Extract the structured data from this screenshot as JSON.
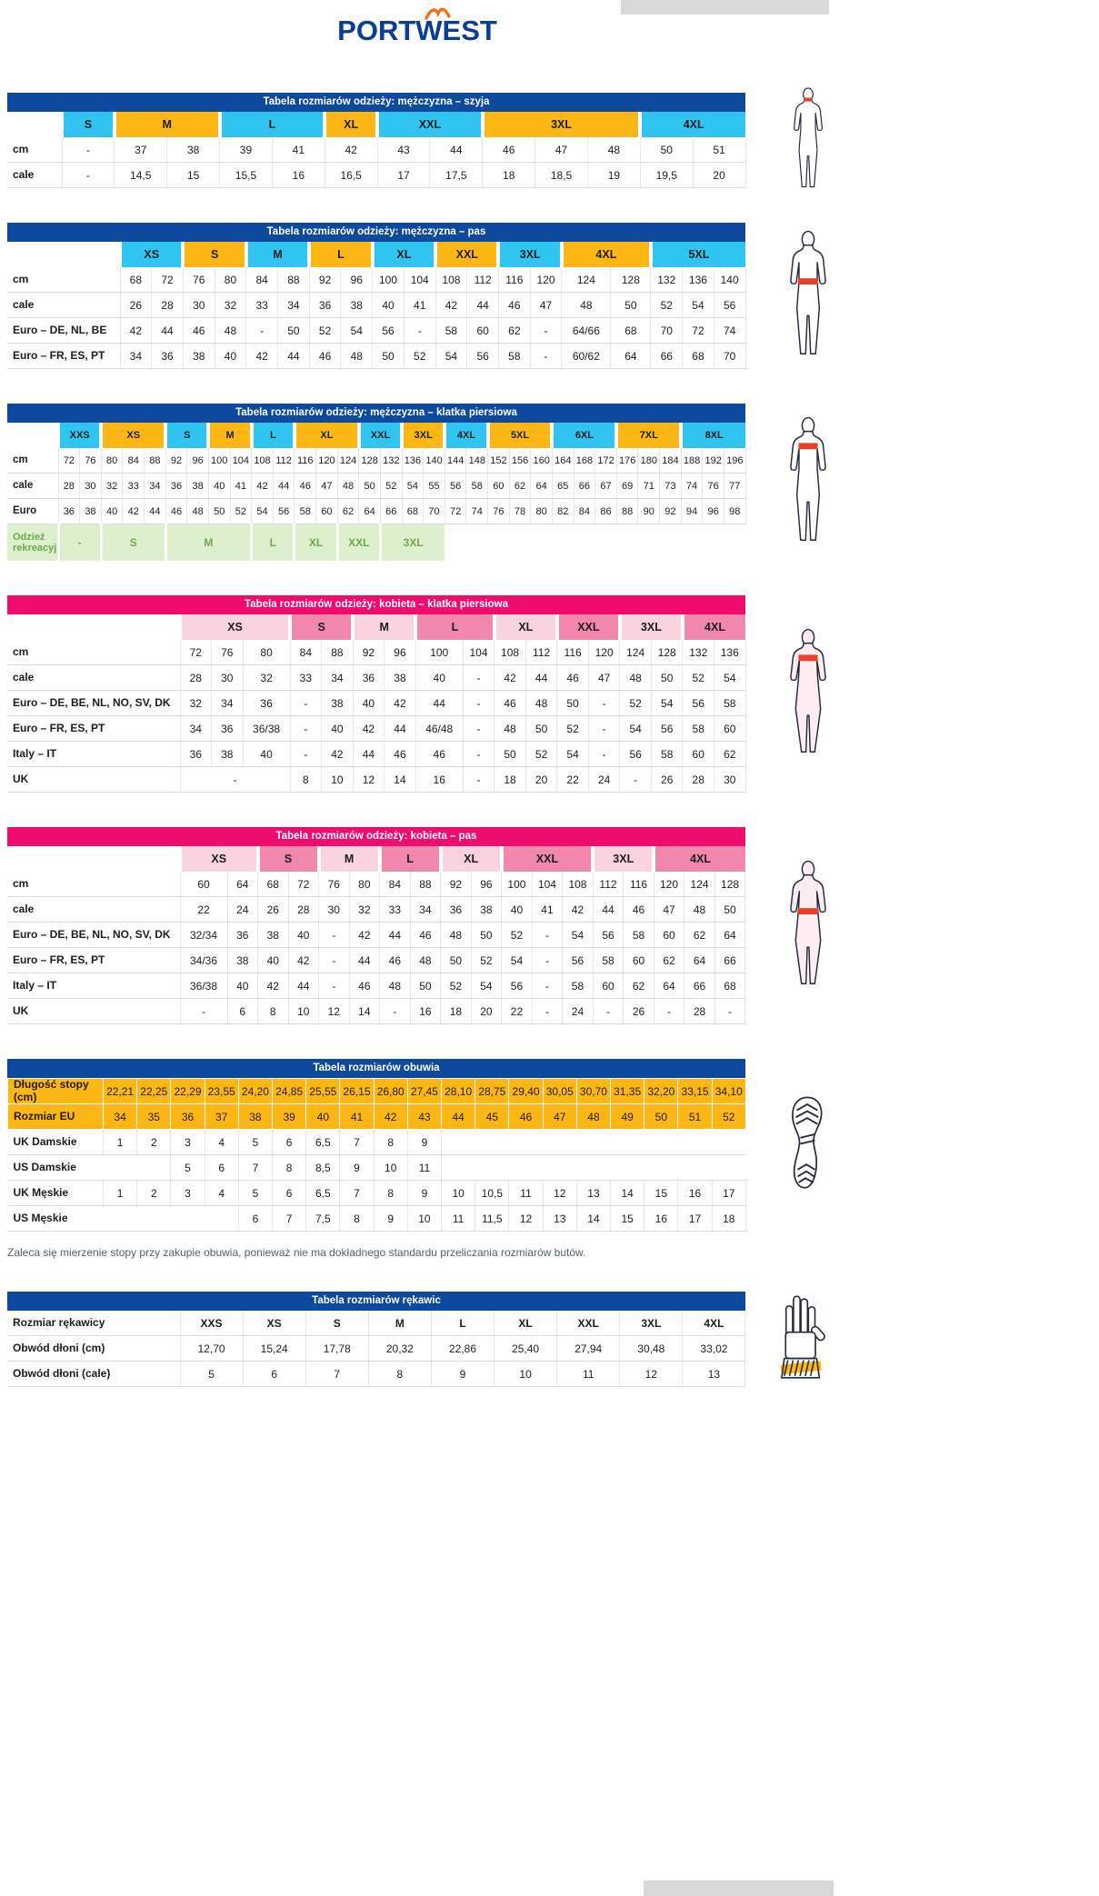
{
  "logo": {
    "brand": "PORTWEST"
  },
  "colors": {
    "blue_bar": "#0d4a9e",
    "pink_bar": "#ee0c6e",
    "cyan": "#2fc5f0",
    "yellow": "#fdb714",
    "pink_light": "#f9d3de",
    "pink_dark": "#f287ae",
    "green_bg": "#ddefcd",
    "green_text": "#6fa84c",
    "highlight_red": "#e8402a"
  },
  "note": "Zaleca się mierzenie stopy przy zakupie obuwia, ponieważ nie ma dokładnego standardu przeliczania rozmiarów butów.",
  "tables": [
    {
      "id": "men-neck",
      "theme": "blue",
      "figure": "maleNeck",
      "title": "Tabela rozmiarów odzieży: mężczyzna – szyja",
      "layout": {
        "label_width": 60,
        "cols": 13
      },
      "size_row": [
        [
          "S",
          1,
          "cyan"
        ],
        [
          "M",
          2,
          "yellow"
        ],
        [
          "L",
          2,
          "cyan"
        ],
        [
          "XL",
          1,
          "yellow"
        ],
        [
          "XXL",
          2,
          "cyan"
        ],
        [
          "3XL",
          3,
          "yellow"
        ],
        [
          "4XL",
          2,
          "cyan"
        ]
      ],
      "rows": [
        {
          "label": "cm",
          "cells": [
            "-",
            "37",
            "38",
            "39",
            "41",
            "42",
            "43",
            "44",
            "46",
            "47",
            "48",
            "50",
            "51"
          ]
        },
        {
          "label": "cale",
          "cells": [
            "-",
            "14,5",
            "15",
            "15,5",
            "16",
            "16,5",
            "17",
            "17,5",
            "18",
            "18,5",
            "19",
            "19,5",
            "20"
          ]
        }
      ]
    },
    {
      "id": "men-waist",
      "theme": "blue",
      "figure": "maleWaist",
      "title": "Tabela rozmiarów odzieży: mężczyzna – pas",
      "layout": {
        "label_width": 124,
        "cols": 19,
        "wide": {
          "14": 54,
          "15": 44
        }
      },
      "size_row": [
        [
          "XS",
          2,
          "cyan"
        ],
        [
          "S",
          2,
          "yellow"
        ],
        [
          "M",
          2,
          "cyan"
        ],
        [
          "L",
          2,
          "yellow"
        ],
        [
          "XL",
          2,
          "cyan"
        ],
        [
          "XXL",
          2,
          "yellow"
        ],
        [
          "3XL",
          2,
          "cyan"
        ],
        [
          "4XL",
          2,
          "yellow"
        ],
        [
          "5XL",
          3,
          "cyan"
        ]
      ],
      "rows": [
        {
          "label": "cm",
          "cells": [
            "68",
            "72",
            "76",
            "80",
            "84",
            "88",
            "92",
            "96",
            "100",
            "104",
            "108",
            "112",
            "116",
            "120",
            "124",
            "128",
            "132",
            "136",
            "140"
          ]
        },
        {
          "label": "cale",
          "cells": [
            "26",
            "28",
            "30",
            "32",
            "33",
            "34",
            "36",
            "38",
            "40",
            "41",
            "42",
            "44",
            "46",
            "47",
            "48",
            "50",
            "52",
            "54",
            "56"
          ]
        },
        {
          "label": "Euro – DE, NL, BE",
          "cells": [
            "42",
            "44",
            "46",
            "48",
            "-",
            "50",
            "52",
            "54",
            "56",
            "-",
            "58",
            "60",
            "62",
            "-",
            "64/66",
            "68",
            "70",
            "72",
            "74"
          ]
        },
        {
          "label": "Euro – FR, ES, PT",
          "cells": [
            "34",
            "36",
            "38",
            "40",
            "42",
            "44",
            "46",
            "48",
            "50",
            "52",
            "54",
            "56",
            "58",
            "-",
            "60/62",
            "64",
            "66",
            "68",
            "70"
          ]
        }
      ]
    },
    {
      "id": "men-chest",
      "theme": "blue",
      "figure": "maleChest",
      "compact": true,
      "title": "Tabela rozmiarów odzieży: mężczyzna – klatka piersiowa",
      "layout": {
        "label_width": 56,
        "cols": 32
      },
      "size_row": [
        [
          "XXS",
          2,
          "cyan"
        ],
        [
          "XS",
          3,
          "yellow"
        ],
        [
          "S",
          2,
          "cyan"
        ],
        [
          "M",
          2,
          "yellow"
        ],
        [
          "L",
          2,
          "cyan"
        ],
        [
          "XL",
          3,
          "yellow"
        ],
        [
          "XXL",
          2,
          "cyan"
        ],
        [
          "3XL",
          2,
          "yellow"
        ],
        [
          "4XL",
          2,
          "cyan"
        ],
        [
          "5XL",
          3,
          "yellow"
        ],
        [
          "6XL",
          3,
          "cyan"
        ],
        [
          "7XL",
          3,
          "yellow"
        ],
        [
          "8XL",
          3,
          "cyan"
        ]
      ],
      "rows": [
        {
          "label": "cm",
          "cells": [
            "72",
            "76",
            "80",
            "84",
            "88",
            "92",
            "96",
            "100",
            "104",
            "108",
            "112",
            "116",
            "120",
            "124",
            "128",
            "132",
            "136",
            "140",
            "144",
            "148",
            "152",
            "156",
            "160",
            "164",
            "168",
            "172",
            "176",
            "180",
            "184",
            "188",
            "192",
            "196"
          ]
        },
        {
          "label": "cale",
          "cells": [
            "28",
            "30",
            "32",
            "33",
            "34",
            "36",
            "38",
            "40",
            "41",
            "42",
            "44",
            "46",
            "47",
            "48",
            "50",
            "52",
            "54",
            "55",
            "56",
            "58",
            "60",
            "62",
            "64",
            "65",
            "66",
            "67",
            "69",
            "71",
            "73",
            "74",
            "76",
            "77"
          ]
        },
        {
          "label": "Euro",
          "cells": [
            "36",
            "38",
            "40",
            "42",
            "44",
            "46",
            "48",
            "50",
            "52",
            "54",
            "56",
            "58",
            "60",
            "62",
            "64",
            "66",
            "68",
            "70",
            "72",
            "74",
            "76",
            "78",
            "80",
            "82",
            "84",
            "86",
            "88",
            "90",
            "92",
            "94",
            "96",
            "98"
          ]
        }
      ],
      "leisure_row": {
        "label": "Odzież rekreacyjna",
        "cells": [
          [
            "-",
            2
          ],
          [
            "S",
            3
          ],
          [
            "M",
            4
          ],
          [
            "L",
            2
          ],
          [
            "XL",
            2
          ],
          [
            "XXL",
            2
          ],
          [
            "3XL",
            3
          ]
        ],
        "filler": 14
      }
    },
    {
      "id": "women-chest",
      "theme": "pink",
      "figure": "femaleChest",
      "title": "Tabela rozmiarów odzieży: kobieta – klatka piersiowa",
      "layout": {
        "label_width": 190,
        "cols": 17,
        "wide": {
          "2": 52,
          "7": 52
        }
      },
      "size_row": [
        [
          "XS",
          3,
          "pink_light"
        ],
        [
          "S",
          2,
          "pink_dark"
        ],
        [
          "M",
          2,
          "pink_light"
        ],
        [
          "L",
          2,
          "pink_dark"
        ],
        [
          "XL",
          2,
          "pink_light"
        ],
        [
          "XXL",
          2,
          "pink_dark"
        ],
        [
          "3XL",
          2,
          "pink_light"
        ],
        [
          "4XL",
          2,
          "pink_dark"
        ]
      ],
      "rows": [
        {
          "label": "cm",
          "cells": [
            "72",
            "76",
            "80",
            "84",
            "88",
            "92",
            "96",
            "100",
            "104",
            "108",
            "112",
            "116",
            "120",
            "124",
            "128",
            "132",
            "136"
          ]
        },
        {
          "label": "cale",
          "cells": [
            "28",
            "30",
            "32",
            "33",
            "34",
            "36",
            "38",
            "40",
            "-",
            "42",
            "44",
            "46",
            "47",
            "48",
            "50",
            "52",
            "54"
          ]
        },
        {
          "label": "Euro – DE, BE, NL, NO, SV, DK",
          "cells": [
            "32",
            "34",
            "36",
            "-",
            "38",
            "40",
            "42",
            "44",
            "-",
            "46",
            "48",
            "50",
            "-",
            "52",
            "54",
            "56",
            "58"
          ]
        },
        {
          "label": "Euro – FR, ES, PT",
          "cells": [
            "34",
            "36",
            "36/38",
            "-",
            "40",
            "42",
            "44",
            "46/48",
            "-",
            "48",
            "50",
            "52",
            "-",
            "54",
            "56",
            "58",
            "60"
          ]
        },
        {
          "label": "Italy – IT",
          "cells": [
            "36",
            "38",
            "40",
            "-",
            "42",
            "44",
            "46",
            "46",
            "-",
            "50",
            "52",
            "54",
            "-",
            "56",
            "58",
            "60",
            "62"
          ]
        },
        {
          "label": "UK",
          "cells": [
            [
              "-",
              3
            ],
            "8",
            "10",
            "12",
            "14",
            "16",
            "-",
            "18",
            "20",
            "22",
            "24",
            "-",
            "26",
            "28",
            "30"
          ]
        }
      ]
    },
    {
      "id": "women-waist",
      "theme": "pink",
      "figure": "femaleWaist",
      "title": "Tabela rozmiarów odzieży: kobieta – pas",
      "layout": {
        "label_width": 190,
        "cols": 18,
        "wide": {
          "0": 52
        }
      },
      "size_row": [
        [
          "XS",
          2,
          "pink_light"
        ],
        [
          "S",
          2,
          "pink_dark"
        ],
        [
          "M",
          2,
          "pink_light"
        ],
        [
          "L",
          2,
          "pink_dark"
        ],
        [
          "XL",
          2,
          "pink_light"
        ],
        [
          "XXL",
          3,
          "pink_dark"
        ],
        [
          "3XL",
          2,
          "pink_light"
        ],
        [
          "4XL",
          3,
          "pink_dark"
        ]
      ],
      "rows": [
        {
          "label": "cm",
          "cells": [
            "60",
            "64",
            "68",
            "72",
            "76",
            "80",
            "84",
            "88",
            "92",
            "96",
            "100",
            "104",
            "108",
            "112",
            "116",
            "120",
            "124",
            "128"
          ]
        },
        {
          "label": "cale",
          "cells": [
            "22",
            "24",
            "26",
            "28",
            "30",
            "32",
            "33",
            "34",
            "36",
            "38",
            "40",
            "41",
            "42",
            "44",
            "46",
            "47",
            "48",
            "50"
          ]
        },
        {
          "label": "Euro – DE, BE, NL, NO, SV, DK",
          "cells": [
            "32/34",
            "36",
            "38",
            "40",
            "-",
            "42",
            "44",
            "46",
            "48",
            "50",
            "52",
            "-",
            "54",
            "56",
            "58",
            "60",
            "62",
            "64"
          ]
        },
        {
          "label": "Euro – FR, ES, PT",
          "cells": [
            "34/36",
            "38",
            "40",
            "42",
            "-",
            "44",
            "46",
            "48",
            "50",
            "52",
            "54",
            "-",
            "56",
            "58",
            "60",
            "62",
            "64",
            "66"
          ]
        },
        {
          "label": "Italy – IT",
          "cells": [
            "36/38",
            "40",
            "42",
            "44",
            "-",
            "46",
            "48",
            "50",
            "52",
            "54",
            "56",
            "-",
            "58",
            "60",
            "62",
            "64",
            "66",
            "68"
          ]
        },
        {
          "label": "UK",
          "cells": [
            "-",
            "6",
            "8",
            "10",
            "12",
            "14",
            "-",
            "16",
            "18",
            "20",
            "22",
            "-",
            "24",
            "-",
            "26",
            "-",
            "28",
            "-"
          ]
        }
      ]
    },
    {
      "id": "shoes",
      "theme": "blue",
      "figure": "shoe",
      "title": "Tabela rozmiarów obuwia",
      "layout": {
        "label_width": 105,
        "cols": 19
      },
      "rows": [
        {
          "label": "Długość stopy (cm)",
          "bg": "yellow",
          "cells": [
            "22,21",
            "22,25",
            "22,29",
            "23,55",
            "24,20",
            "24,85",
            "25,55",
            "26,15",
            "26,80",
            "27,45",
            "28,10",
            "28,75",
            "29,40",
            "30,05",
            "30,70",
            "31,35",
            "32,20",
            "33,15",
            "34,10"
          ]
        },
        {
          "label": "Rozmiar EU",
          "bg": "yellow",
          "cells": [
            "34",
            "35",
            "36",
            "37",
            "38",
            "39",
            "40",
            "41",
            "42",
            "43",
            "44",
            "45",
            "46",
            "47",
            "48",
            "49",
            "50",
            "51",
            "52"
          ]
        },
        {
          "label": "UK Damskie",
          "cells": [
            "1",
            "2",
            "3",
            "4",
            "5",
            "6",
            "6,5",
            "7",
            "8",
            "9",
            null,
            null,
            null,
            null,
            null,
            null,
            null,
            null,
            null
          ]
        },
        {
          "label": "US Damskie",
          "cells": [
            null,
            null,
            "5",
            "6",
            "7",
            "8",
            "8,5",
            "9",
            "10",
            "11",
            null,
            null,
            null,
            null,
            null,
            null,
            null,
            null,
            null
          ]
        },
        {
          "label": "UK Męskie",
          "cells": [
            "1",
            "2",
            "3",
            "4",
            "5",
            "6",
            "6,5",
            "7",
            "8",
            "9",
            "10",
            "10,5",
            "11",
            "12",
            "13",
            "14",
            "15",
            "16",
            "17"
          ]
        },
        {
          "label": "US Męskie",
          "cells": [
            null,
            null,
            null,
            null,
            "6",
            "7",
            "7,5",
            "8",
            "9",
            "10",
            "11",
            "11,5",
            "12",
            "13",
            "14",
            "15",
            "16",
            "17",
            "18"
          ]
        }
      ]
    },
    {
      "id": "gloves",
      "theme": "blue",
      "figure": "glove",
      "title": "Tabela rozmiarów rękawic",
      "layout": {
        "label_width": 190,
        "cols": 9
      },
      "rows": [
        {
          "label": "Rozmiar rękawicy",
          "bold_cells": true,
          "cells": [
            "XXS",
            "XS",
            "S",
            "M",
            "L",
            "XL",
            "XXL",
            "3XL",
            "4XL"
          ]
        },
        {
          "label": "Obwód dłoni (cm)",
          "cells": [
            "12,70",
            "15,24",
            "17,78",
            "20,32",
            "22,86",
            "25,40",
            "27,94",
            "30,48",
            "33,02"
          ]
        },
        {
          "label": "Obwód dłoni (cale)",
          "cells": [
            "5",
            "6",
            "7",
            "8",
            "9",
            "10",
            "11",
            "12",
            "13"
          ]
        }
      ]
    }
  ]
}
